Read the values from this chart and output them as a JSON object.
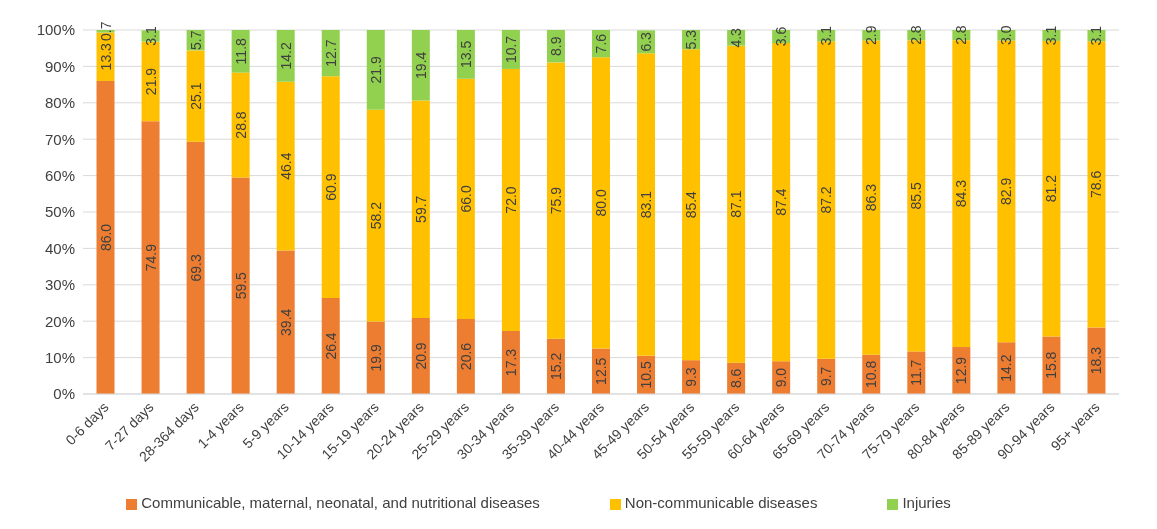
{
  "chart_data": {
    "type": "bar",
    "stacked": true,
    "categories": [
      "0-6 days",
      "7-27 days",
      "28-364 days",
      "1-4 years",
      "5-9 years",
      "10-14 years",
      "15-19 years",
      "20-24 years",
      "25-29 years",
      "30-34 years",
      "35-39 years",
      "40-44 years",
      "45-49 years",
      "50-54 years",
      "55-59 years",
      "60-64 years",
      "65-69 years",
      "70-74 years",
      "75-79 years",
      "80-84 years",
      "85-89 years",
      "90-94 years",
      "95+ years"
    ],
    "series": [
      {
        "name": "Communicable, maternal, neonatal, and nutritional diseases",
        "color": "#ed7d31",
        "values": [
          86.0,
          74.9,
          69.3,
          59.5,
          39.4,
          26.4,
          19.9,
          20.9,
          20.6,
          17.3,
          15.2,
          12.5,
          10.5,
          9.3,
          8.6,
          9.0,
          9.7,
          10.8,
          11.7,
          12.9,
          14.2,
          15.8,
          18.3
        ],
        "value_labels": [
          "86.0",
          "74.9",
          "69.3",
          "59.5",
          "39.4",
          "26.4",
          "19.9",
          "20.9",
          "20.6",
          "17.3",
          "15.2",
          "12.5",
          "10.5",
          "9.3",
          "8.6",
          "9.0",
          "9.7",
          "10.8",
          "11.7",
          "12.9",
          "14.2",
          "15.8",
          "18.3"
        ]
      },
      {
        "name": "Non-communicable diseases",
        "color": "#ffc000",
        "values": [
          13.3,
          21.9,
          25.1,
          28.8,
          46.4,
          60.9,
          58.2,
          59.7,
          66.0,
          72.0,
          75.9,
          80.0,
          83.1,
          85.4,
          87.1,
          87.4,
          87.2,
          86.3,
          85.5,
          84.3,
          82.9,
          81.2,
          78.6
        ],
        "value_labels": [
          "13.3",
          "21.9",
          "25.1",
          "28.8",
          "46.4",
          "60.9",
          "58.2",
          "59.7",
          "66.0",
          "72.0",
          "75.9",
          "80.0",
          "83.1",
          "85.4",
          "87.1",
          "87.4",
          "87.2",
          "86.3",
          "85.5",
          "84.3",
          "82.9",
          "81.2",
          "78.6"
        ]
      },
      {
        "name": "Injuries",
        "color": "#92d050",
        "values": [
          0.7,
          3.1,
          5.7,
          11.8,
          14.2,
          12.7,
          21.9,
          19.4,
          13.5,
          10.7,
          8.9,
          7.6,
          6.3,
          5.3,
          4.3,
          3.6,
          3.1,
          2.9,
          2.8,
          2.8,
          3.0,
          3.1,
          3.1
        ],
        "value_labels": [
          "0.7",
          "3.1",
          "5.7",
          "11.8",
          "14.2",
          "12.7",
          "21.9",
          "19.4",
          "13.5",
          "10.7",
          "8.9",
          "7.6",
          "6.3",
          "5.3",
          "4.3",
          "3.6",
          "3.1",
          "2.9",
          "2.8",
          "2.8",
          "3.0",
          "3.1",
          "3.1"
        ]
      }
    ],
    "ylim": [
      0,
      100
    ],
    "yticks": [
      {
        "value": 0,
        "label": "0%"
      },
      {
        "value": 10,
        "label": "10%"
      },
      {
        "value": 20,
        "label": "20%"
      },
      {
        "value": 30,
        "label": "30%"
      },
      {
        "value": 40,
        "label": "40%"
      },
      {
        "value": 50,
        "label": "50%"
      },
      {
        "value": 60,
        "label": "60%"
      },
      {
        "value": 70,
        "label": "70%"
      },
      {
        "value": 80,
        "label": "80%"
      },
      {
        "value": 90,
        "label": "90%"
      },
      {
        "value": 100,
        "label": "100%"
      }
    ],
    "grid": "y",
    "legend": "bottom"
  }
}
